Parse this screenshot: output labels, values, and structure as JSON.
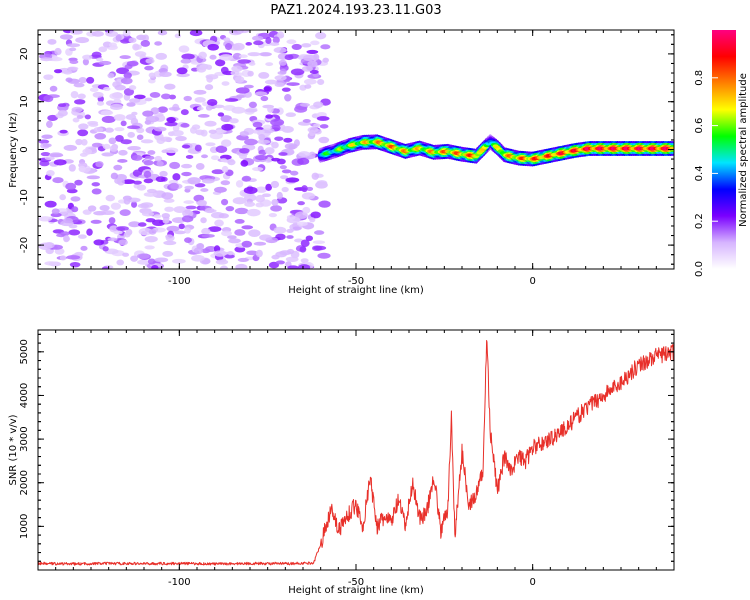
{
  "figure": {
    "title": "PAZ1.2024.193.23.11.G03"
  },
  "chart_data": [
    {
      "type": "heatmap",
      "xlabel": "Height of straight line (km)",
      "ylabel": "Frequency (Hz)",
      "xlim": [
        -140,
        40
      ],
      "ylim": [
        -25,
        25
      ],
      "xticks": [
        -100,
        -50,
        0
      ],
      "yticks": [
        -20,
        -10,
        0,
        10,
        20
      ],
      "noise_region_x": [
        -140,
        -60
      ],
      "signal_ridge": {
        "x": [
          -60,
          -56,
          -52,
          -48,
          -44,
          -40,
          -36,
          -32,
          -28,
          -24,
          -20,
          -16,
          -12,
          -10,
          -8,
          -4,
          0,
          4,
          8,
          12,
          16,
          20,
          24,
          30,
          36,
          40
        ],
        "freq": [
          -1.2,
          -0.3,
          0.8,
          1.5,
          1.6,
          0.6,
          -0.4,
          0.3,
          -0.6,
          -0.4,
          -1.0,
          -1.4,
          1.6,
          0.4,
          -1.1,
          -1.8,
          -2.0,
          -1.4,
          -0.8,
          -0.2,
          0.2,
          0.2,
          0.2,
          0.2,
          0.2,
          0.2
        ],
        "amplitude": [
          0.55,
          0.6,
          0.7,
          0.75,
          0.8,
          0.85,
          0.8,
          0.75,
          0.8,
          0.85,
          0.85,
          0.9,
          0.55,
          0.7,
          0.8,
          0.85,
          0.9,
          0.9,
          0.95,
          0.95,
          1.0,
          1.0,
          1.0,
          1.0,
          1.0,
          1.0
        ]
      },
      "colorbar": {
        "label": "Normalized spectral amplitude",
        "range": [
          0.0,
          1.0
        ],
        "ticks": [
          0.0,
          0.2,
          0.4,
          0.6,
          0.8
        ],
        "colormap": [
          "#ffffff",
          "#d6b4ff",
          "#7a00ff",
          "#0000ff",
          "#00e5ff",
          "#00ff00",
          "#ffff00",
          "#ff8000",
          "#ff0000",
          "#ff0080"
        ]
      }
    },
    {
      "type": "line",
      "xlabel": "Height of straight line (km)",
      "ylabel": "SNR (10 * v/v)",
      "xlim": [
        -140,
        40
      ],
      "ylim": [
        0,
        5500
      ],
      "xticks": [
        -100,
        -50,
        0
      ],
      "yticks": [
        1000,
        2000,
        3000,
        4000,
        5000
      ],
      "series": [
        {
          "color": "#e8302a",
          "x": [
            -140,
            -130,
            -120,
            -110,
            -100,
            -90,
            -80,
            -70,
            -62,
            -60,
            -58,
            -57,
            -55,
            -52,
            -50,
            -48,
            -46,
            -44,
            -42,
            -40,
            -38,
            -36,
            -34,
            -32,
            -30,
            -28,
            -26,
            -24,
            -23,
            -22,
            -20,
            -18,
            -16,
            -14,
            -13,
            -12,
            -10,
            -8,
            -6,
            -4,
            -2,
            0,
            5,
            10,
            15,
            20,
            25,
            30,
            35,
            40
          ],
          "y": [
            150,
            140,
            150,
            145,
            150,
            140,
            150,
            145,
            160,
            600,
            1100,
            1500,
            900,
            1300,
            1500,
            1000,
            2100,
            1000,
            1200,
            1100,
            1600,
            1000,
            2000,
            1200,
            1300,
            2200,
            900,
            1400,
            3500,
            800,
            2700,
            1500,
            1700,
            2300,
            5400,
            3200,
            1800,
            2600,
            2300,
            2600,
            2500,
            2800,
            3000,
            3300,
            3700,
            4000,
            4300,
            4700,
            4900,
            5000
          ]
        }
      ]
    }
  ]
}
